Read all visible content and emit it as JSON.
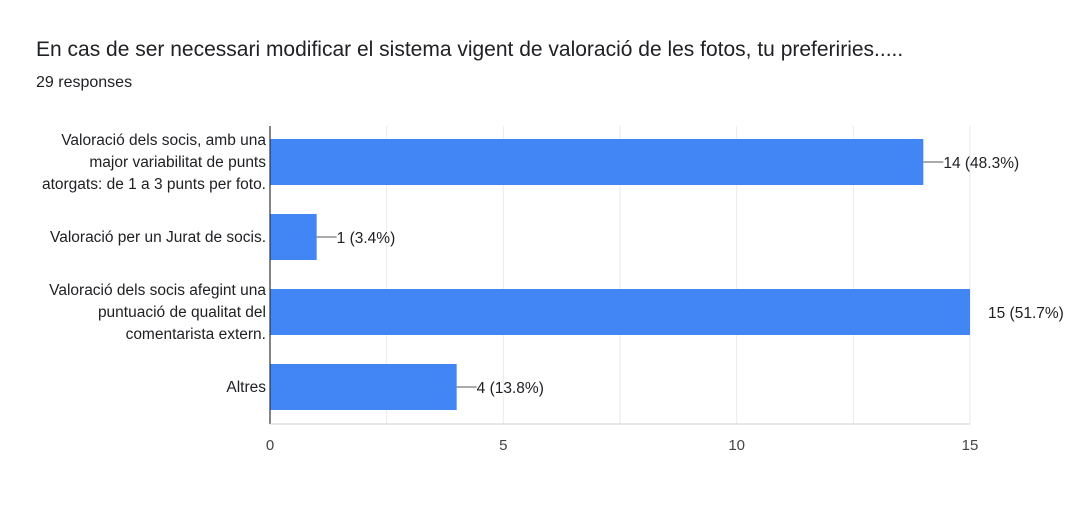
{
  "header": {
    "title": "En cas de ser necessari modificar el sistema vigent de valoració de les fotos, tu preferiries.....",
    "responses": "29 responses"
  },
  "chart_data": {
    "type": "bar",
    "orientation": "horizontal",
    "categories": [
      [
        "Valoració dels socis, amb una",
        "major variabilitat de punts",
        "atorgats: de 1 a 3 punts per foto."
      ],
      [
        "Valoració per un Jurat de socis."
      ],
      [
        "Valoració dels socis afegint una",
        "puntuació de qualitat del",
        "comentarista extern."
      ],
      [
        "Altres"
      ]
    ],
    "values": [
      14,
      1,
      15,
      4
    ],
    "data_labels": [
      "14 (48.3%)",
      "1 (3.4%)",
      "15 (51.7%)",
      "4 (13.8%)"
    ],
    "xlim": [
      0,
      15
    ],
    "xticks": [
      0,
      5,
      10,
      15
    ],
    "grid": true,
    "colors": {
      "bar": "#4285f4",
      "grid": "#e8eaed",
      "axis": "#333333",
      "text": "#202124"
    }
  }
}
